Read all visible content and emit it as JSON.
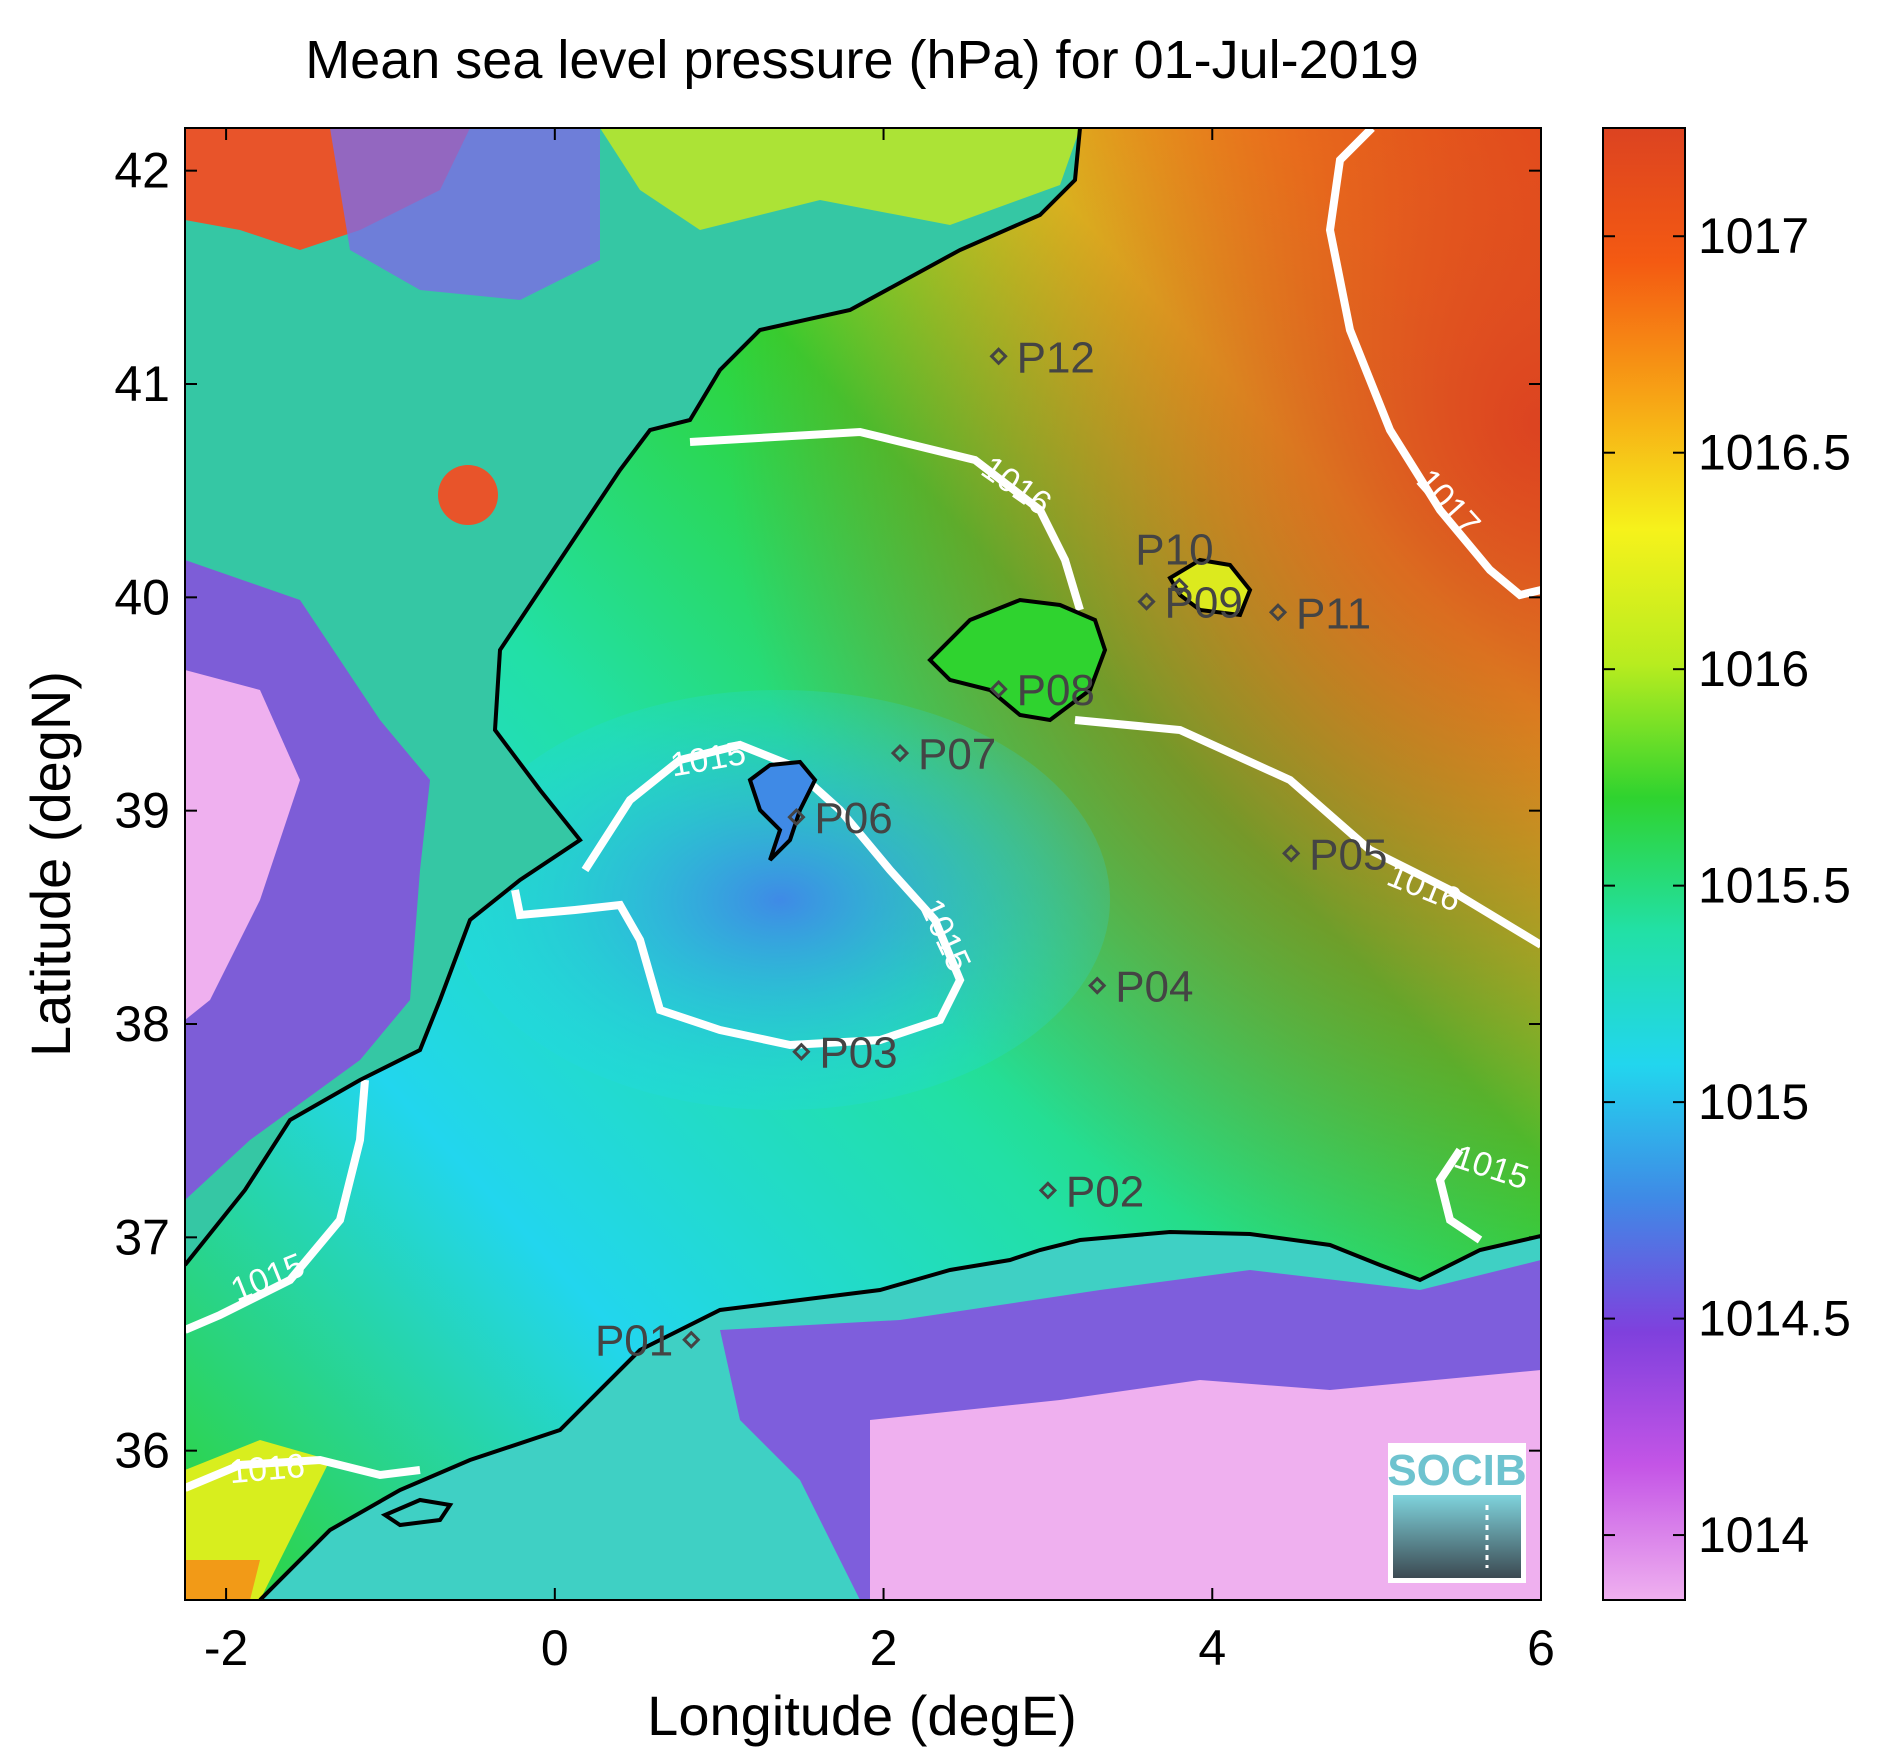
{
  "title": "Mean sea level pressure (hPa) for 01-Jul-2019",
  "xlabel": "Longitude (degE)",
  "ylabel": "Latitude (degN)",
  "x_ticks": [
    "-2",
    "0",
    "2",
    "4",
    "6"
  ],
  "y_ticks": [
    "36",
    "37",
    "38",
    "39",
    "40",
    "41",
    "42"
  ],
  "colorbar": {
    "ticks": [
      "1014",
      "1014.5",
      "1015",
      "1015.5",
      "1016",
      "1016.5",
      "1017"
    ],
    "stops": [
      "#efb0ef",
      "#c455e6",
      "#7f40dd",
      "#3f8ae6",
      "#22d6ee",
      "#22e0a5",
      "#2fd32f",
      "#b8ec1f",
      "#f6f21b",
      "#f7a315",
      "#f45a12",
      "#dc4321"
    ]
  },
  "contour_labels": [
    "1015",
    "1015",
    "1015",
    "1015",
    "1016",
    "1016",
    "1016",
    "1017"
  ],
  "stations": [
    {
      "name": "P01",
      "lon": 0.83,
      "lat": 36.52
    },
    {
      "name": "P02",
      "lon": 3.0,
      "lat": 37.22
    },
    {
      "name": "P03",
      "lon": 1.5,
      "lat": 37.87
    },
    {
      "name": "P04",
      "lon": 3.3,
      "lat": 38.18
    },
    {
      "name": "P05",
      "lon": 4.48,
      "lat": 38.8
    },
    {
      "name": "P06",
      "lon": 1.47,
      "lat": 38.97
    },
    {
      "name": "P07",
      "lon": 2.1,
      "lat": 39.27
    },
    {
      "name": "P08",
      "lon": 2.7,
      "lat": 39.57
    },
    {
      "name": "P09",
      "lon": 3.6,
      "lat": 39.98
    },
    {
      "name": "P10",
      "lon": 3.8,
      "lat": 40.05
    },
    {
      "name": "P11",
      "lon": 4.4,
      "lat": 39.93
    },
    {
      "name": "P12",
      "lon": 2.7,
      "lat": 41.13
    }
  ],
  "logo_text": "SOCIB"
}
